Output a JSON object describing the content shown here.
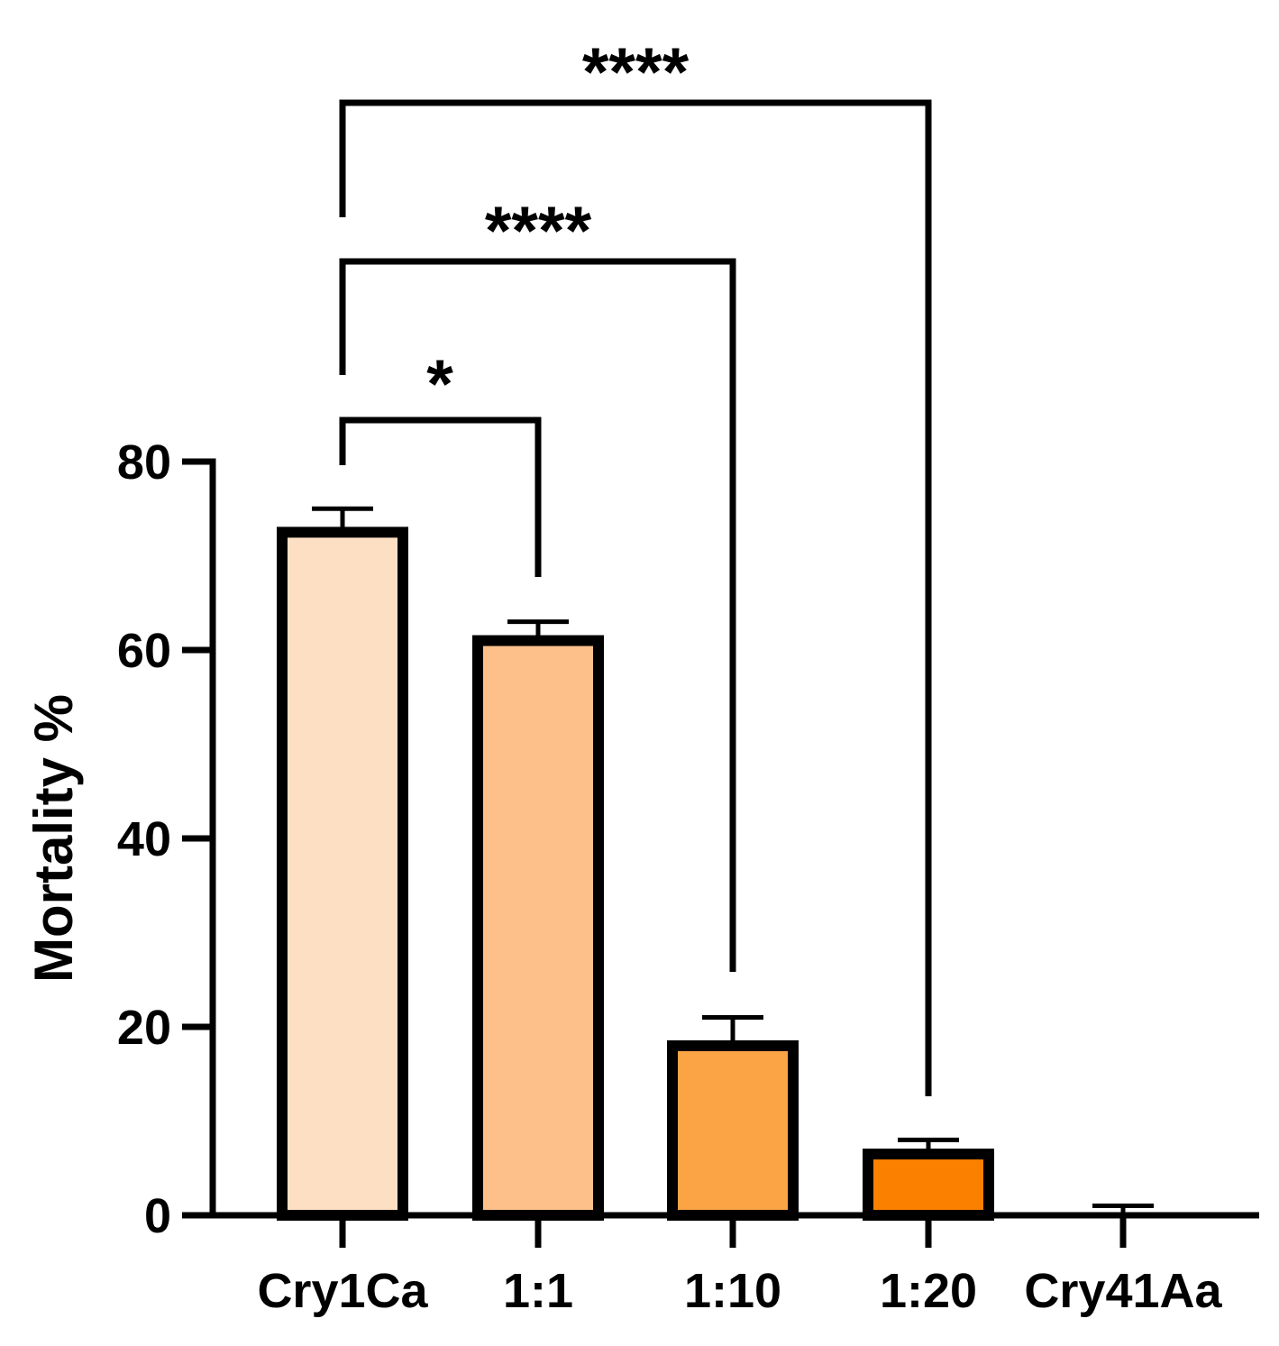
{
  "chart_data": {
    "type": "bar",
    "categories": [
      "Cry1Ca",
      "1:1",
      "1:10",
      "1:20",
      "Cry41Aa"
    ],
    "values": [
      72.5,
      61,
      18,
      6.5,
      0
    ],
    "errors": [
      2.5,
      2,
      3,
      1.5,
      1
    ],
    "colors": [
      "#fde0c4",
      "#fdc08a",
      "#fba446",
      "#fb8000",
      "#ffffff"
    ],
    "ylabel": "Mortality %",
    "ylim": [
      0,
      80
    ],
    "yticks": [
      0,
      20,
      40,
      60,
      80
    ],
    "grid": false,
    "significance": [
      {
        "from": 0,
        "to": 1,
        "label": "*"
      },
      {
        "from": 0,
        "to": 2,
        "label": "****"
      },
      {
        "from": 0,
        "to": 3,
        "label": "****"
      }
    ]
  }
}
